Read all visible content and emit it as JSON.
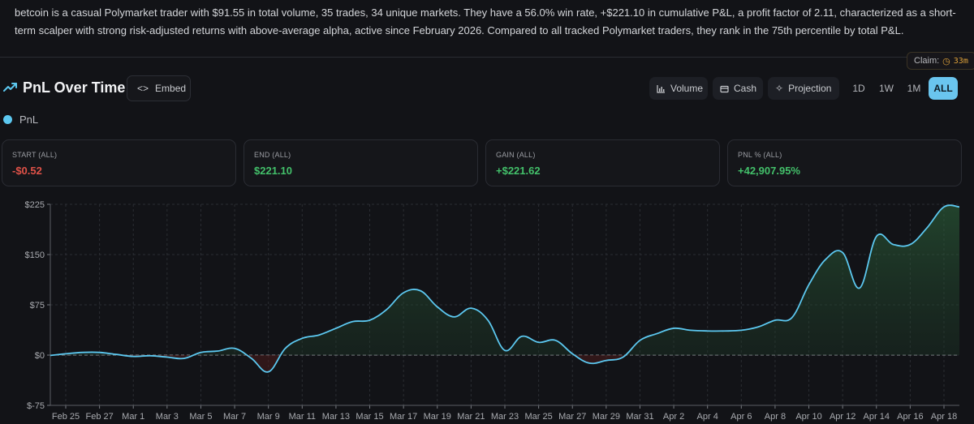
{
  "summary": "betcoin is a casual Polymarket trader with $91.55 in total volume, 35 trades, 34 unique markets. They have a 56.0% win rate, +$221.10 in cumulative P&L, a profit factor of 2.11, characterized as a short-term scalper with strong risk-adjusted returns with above-average alpha, active since February 2026. Compared to all tracked Polymarket traders, they rank in the 75th percentile by total P&L.",
  "claim": {
    "label": "Claim:",
    "timer": "33m",
    "icon": "clock-icon"
  },
  "header": {
    "title": "PnL Over Time",
    "title_icon": "trending-up-icon",
    "embed_label": "Embed",
    "embed_icon": "code-icon",
    "buttons": [
      {
        "label": "Volume",
        "icon": "bar-chart-icon"
      },
      {
        "label": "Cash",
        "icon": "wallet-icon"
      },
      {
        "label": "Projection",
        "icon": "sparkle-icon"
      }
    ],
    "periods": [
      "1D",
      "1W",
      "1M",
      "ALL"
    ],
    "active_period": "ALL"
  },
  "legend": {
    "label": "PnL",
    "color": "#5cc8f0"
  },
  "stats": [
    {
      "label": "START (ALL)",
      "value": "-$0.52",
      "tone": "negative"
    },
    {
      "label": "END (ALL)",
      "value": "$221.10",
      "tone": "positive"
    },
    {
      "label": "GAIN (ALL)",
      "value": "+$221.62",
      "tone": "positive"
    },
    {
      "label": "PNL % (ALL)",
      "value": "+42,907.95%",
      "tone": "positive"
    }
  ],
  "colors": {
    "line": "#5cc8f0",
    "positive": "#43c06a",
    "negative": "#e05248",
    "active": "#6ac5ee",
    "background": "#121317"
  },
  "chart_data": {
    "type": "area",
    "series": [
      {
        "name": "PnL"
      }
    ],
    "x_ticks": [
      "Feb 25",
      "Feb 27",
      "Mar 1",
      "Mar 3",
      "Mar 5",
      "Mar 7",
      "Mar 9",
      "Mar 11",
      "Mar 13",
      "Mar 15",
      "Mar 17",
      "Mar 19",
      "Mar 21",
      "Mar 23",
      "Mar 25",
      "Mar 27",
      "Mar 29",
      "Mar 31",
      "Apr 2",
      "Apr 4",
      "Apr 6",
      "Apr 8",
      "Apr 10",
      "Apr 12",
      "Apr 14",
      "Apr 16",
      "Apr 18"
    ],
    "y_ticks": [
      "$225",
      "$150",
      "$75",
      "$0",
      "$-75"
    ],
    "y_tick_values": [
      225,
      150,
      75,
      0,
      -75
    ],
    "ylim": [
      -75,
      225
    ],
    "grid": true,
    "points": [
      [
        "Feb 24",
        -0.52
      ],
      [
        "Feb 25",
        2
      ],
      [
        "Feb 26",
        4
      ],
      [
        "Feb 27",
        4
      ],
      [
        "Feb 28",
        1
      ],
      [
        "Mar 1",
        -2
      ],
      [
        "Mar 2",
        -1
      ],
      [
        "Mar 3",
        -3
      ],
      [
        "Mar 4",
        -5
      ],
      [
        "Mar 5",
        4
      ],
      [
        "Mar 6",
        6
      ],
      [
        "Mar 7",
        10
      ],
      [
        "Mar 8",
        -5
      ],
      [
        "Mar 9",
        -25
      ],
      [
        "Mar 10",
        10
      ],
      [
        "Mar 11",
        25
      ],
      [
        "Mar 12",
        30
      ],
      [
        "Mar 13",
        40
      ],
      [
        "Mar 14",
        50
      ],
      [
        "Mar 15",
        52
      ],
      [
        "Mar 16",
        68
      ],
      [
        "Mar 17",
        93
      ],
      [
        "Mar 18",
        96
      ],
      [
        "Mar 19",
        72
      ],
      [
        "Mar 20",
        57
      ],
      [
        "Mar 21",
        70
      ],
      [
        "Mar 22",
        52
      ],
      [
        "Mar 23",
        7
      ],
      [
        "Mar 24",
        28
      ],
      [
        "Mar 25",
        19
      ],
      [
        "Mar 26",
        22
      ],
      [
        "Mar 27",
        2
      ],
      [
        "Mar 28",
        -12
      ],
      [
        "Mar 29",
        -8
      ],
      [
        "Mar 30",
        -3
      ],
      [
        "Mar 31",
        22
      ],
      [
        "Apr 1",
        32
      ],
      [
        "Apr 2",
        40
      ],
      [
        "Apr 3",
        37
      ],
      [
        "Apr 4",
        36
      ],
      [
        "Apr 5",
        36
      ],
      [
        "Apr 6",
        37
      ],
      [
        "Apr 7",
        42
      ],
      [
        "Apr 8",
        52
      ],
      [
        "Apr 9",
        56
      ],
      [
        "Apr 10",
        105
      ],
      [
        "Apr 11",
        143
      ],
      [
        "Apr 12",
        153
      ],
      [
        "Apr 13",
        100
      ],
      [
        "Apr 14",
        177
      ],
      [
        "Apr 15",
        165
      ],
      [
        "Apr 16",
        165
      ],
      [
        "Apr 17",
        190
      ],
      [
        "Apr 18",
        221.1
      ],
      [
        "Apr 19",
        221.1
      ]
    ]
  }
}
